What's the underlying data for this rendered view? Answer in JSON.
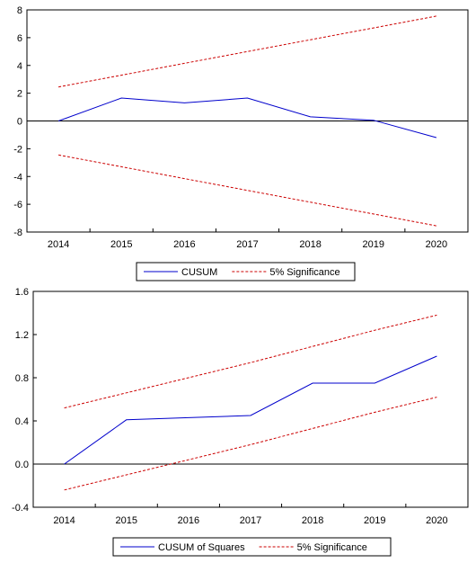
{
  "chart_data": [
    {
      "type": "line",
      "x": [
        "2014",
        "2015",
        "2016",
        "2017",
        "2018",
        "2019",
        "2020"
      ],
      "series": [
        {
          "name": "CUSUM",
          "values": [
            0.0,
            1.65,
            1.3,
            1.65,
            0.3,
            0.05,
            -1.2
          ],
          "color": "#0000cc",
          "style": "solid"
        },
        {
          "name": "5% Significance",
          "values": [
            2.45,
            3.3,
            4.15,
            5.0,
            5.85,
            6.7,
            7.55
          ],
          "color": "#cc0000",
          "style": "dashed"
        },
        {
          "name": "",
          "values": [
            -2.45,
            -3.3,
            -4.15,
            -5.0,
            -5.85,
            -6.7,
            -7.55
          ],
          "color": "#cc0000",
          "style": "dashed"
        }
      ],
      "ylim": [
        -8,
        8
      ],
      "yticks": [
        "8",
        "6",
        "4",
        "2",
        "0",
        "-2",
        "-4",
        "-6",
        "-8"
      ],
      "zero_line": true,
      "legend": {
        "position": "bottom",
        "items": [
          "CUSUM",
          "5% Significance"
        ]
      }
    },
    {
      "type": "line",
      "x": [
        "2014",
        "2015",
        "2016",
        "2017",
        "2018",
        "2019",
        "2020"
      ],
      "series": [
        {
          "name": "CUSUM of Squares",
          "values": [
            0.0,
            0.41,
            0.43,
            0.45,
            0.75,
            0.75,
            1.0
          ],
          "color": "#0000cc",
          "style": "solid"
        },
        {
          "name": "5% Significance",
          "values": [
            0.52,
            0.66,
            0.8,
            0.94,
            1.09,
            1.24,
            1.38
          ],
          "color": "#cc0000",
          "style": "dashed"
        },
        {
          "name": "",
          "values": [
            -0.24,
            -0.1,
            0.04,
            0.18,
            0.33,
            0.48,
            0.62
          ],
          "color": "#cc0000",
          "style": "dashed"
        }
      ],
      "ylim": [
        -0.4,
        1.6
      ],
      "yticks": [
        "1.6",
        "1.2",
        "0.8",
        "0.4",
        "0.0",
        "-0.4"
      ],
      "zero_line": true,
      "legend": {
        "position": "bottom",
        "items": [
          "CUSUM of Squares",
          "5% Significance"
        ]
      }
    }
  ]
}
